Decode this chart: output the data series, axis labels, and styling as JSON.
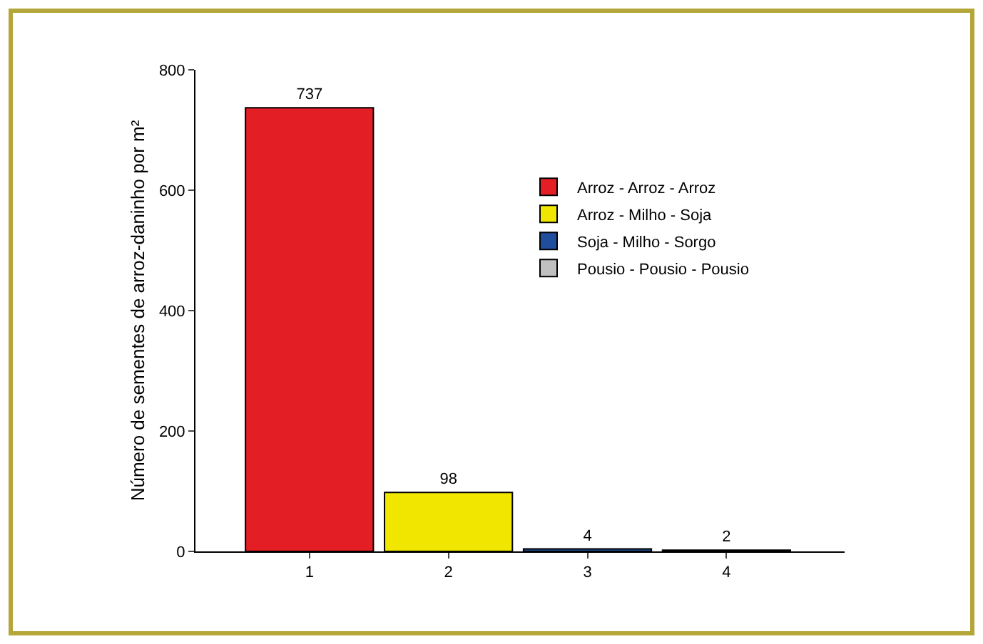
{
  "chart_data": {
    "type": "bar",
    "ylabel": "Número de sementes de arroz-daninho por m²",
    "categories": [
      "1",
      "2",
      "3",
      "4"
    ],
    "series": [
      {
        "name": "Arroz - Arroz - Arroz",
        "color": "#e31e24",
        "values": [
          737,
          null,
          null,
          null
        ]
      },
      {
        "name": "Arroz - Milho - Soja",
        "color": "#f0e600",
        "values": [
          null,
          98,
          null,
          null
        ]
      },
      {
        "name": "Soja - Milho - Sorgo",
        "color": "#1f4e9c",
        "values": [
          null,
          null,
          4,
          null
        ]
      },
      {
        "name": "Pousio - Pousio - Pousio",
        "color": "#c0c0c0",
        "values": [
          null,
          null,
          null,
          2
        ]
      }
    ],
    "ylim": [
      0,
      800
    ],
    "yticks": [
      0,
      200,
      400,
      600,
      800
    ],
    "data_labels": true,
    "legend": "top right",
    "grid": false
  }
}
